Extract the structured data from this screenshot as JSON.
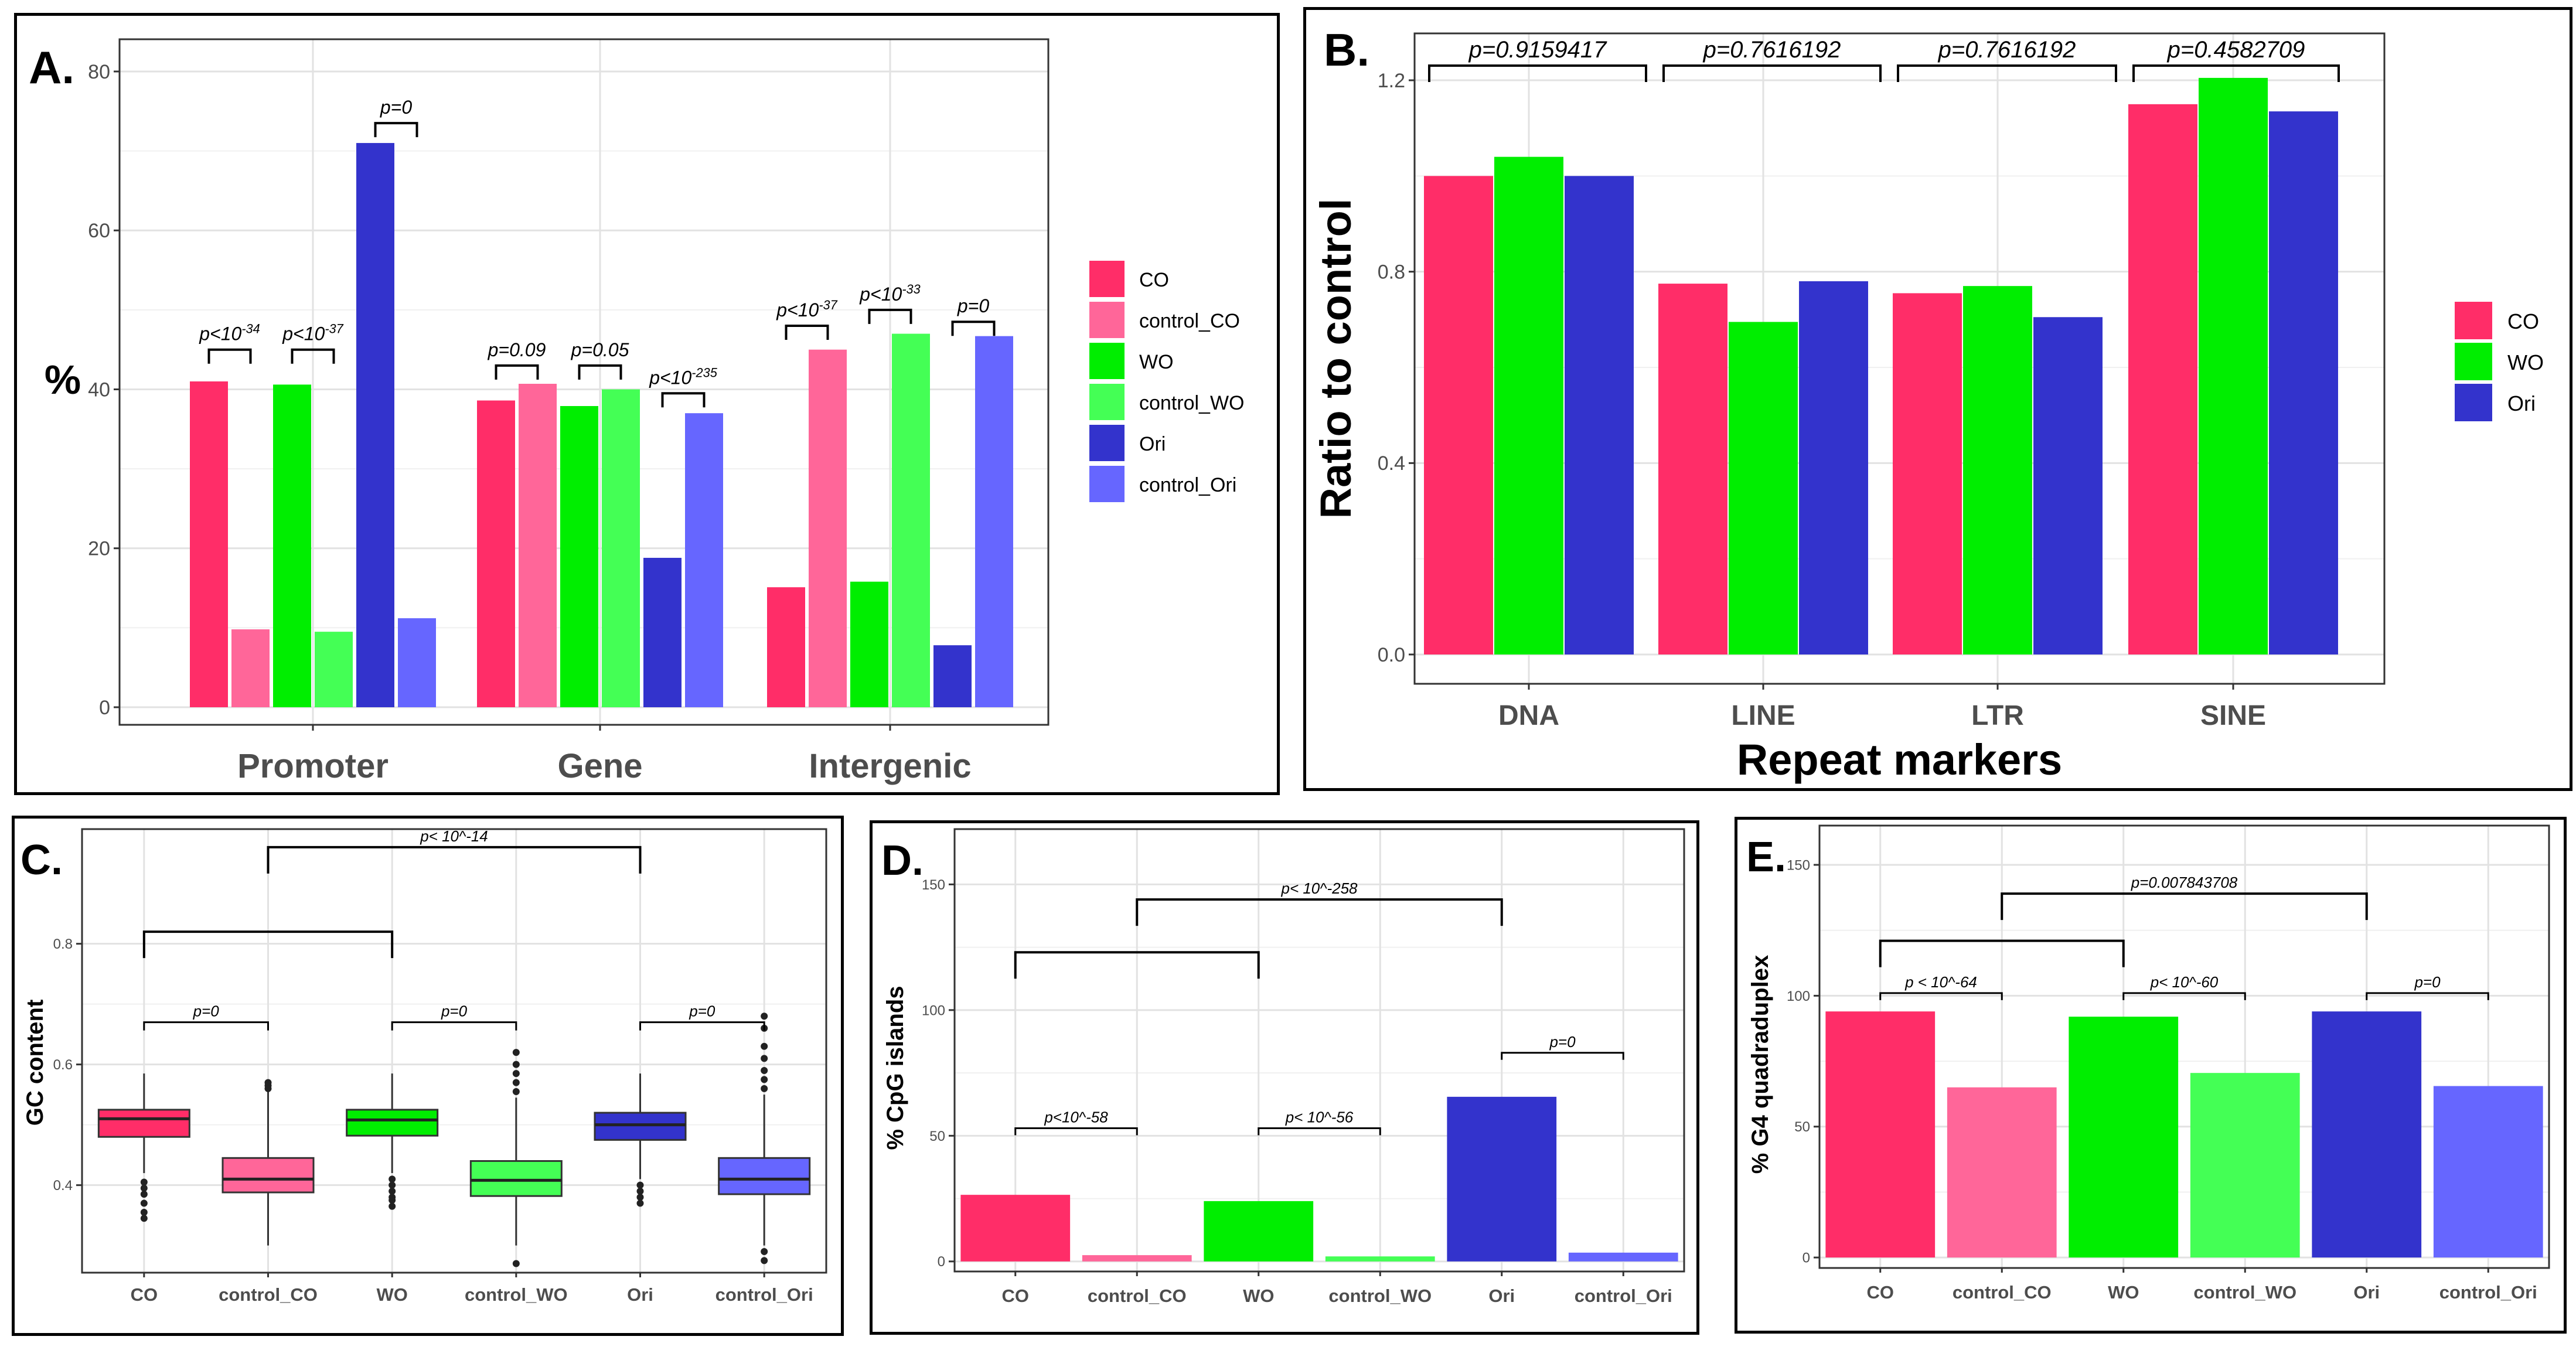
{
  "chart_data": [
    {
      "id": "A",
      "panel_label": "A.",
      "type": "bar",
      "ylabel": "%",
      "xlabel": "",
      "ylim": [
        0,
        82
      ],
      "yticks": [
        0,
        20,
        40,
        60,
        80
      ],
      "categories": [
        "Promoter",
        "Gene",
        "Intergenic"
      ],
      "series": [
        {
          "name": "CO",
          "values": [
            41,
            38.6,
            15.1
          ]
        },
        {
          "name": "control_CO",
          "values": [
            9.8,
            40.7,
            45
          ]
        },
        {
          "name": "WO",
          "values": [
            40.6,
            37.9,
            15.8
          ]
        },
        {
          "name": "control_WO",
          "values": [
            9.5,
            40,
            47
          ]
        },
        {
          "name": "Ori",
          "values": [
            71,
            18.8,
            7.8
          ]
        },
        {
          "name": "control_Ori",
          "values": [
            11.2,
            37,
            46.7
          ]
        }
      ],
      "colors": [
        "#ff2d68",
        "#ff6699",
        "#00ee00",
        "#44ff55",
        "#3333cc",
        "#6666ff"
      ],
      "legend_position": "right",
      "annotations": [
        {
          "text": "p<10",
          "sup": "-34",
          "group": 0,
          "pair": [
            0,
            1
          ],
          "y": 45
        },
        {
          "text": "p<10",
          "sup": "-37",
          "group": 0,
          "pair": [
            2,
            3
          ],
          "y": 45
        },
        {
          "text": "p=0",
          "sup": "",
          "group": 0,
          "pair": [
            4,
            5
          ],
          "y": 73.5
        },
        {
          "text": "p=0.09",
          "sup": "",
          "group": 1,
          "pair": [
            0,
            1
          ],
          "y": 43
        },
        {
          "text": "p=0.05",
          "sup": "",
          "group": 1,
          "pair": [
            2,
            3
          ],
          "y": 43
        },
        {
          "text": "p<10",
          "sup": "-235",
          "group": 1,
          "pair": [
            4,
            5
          ],
          "y": 39.5
        },
        {
          "text": "p<10",
          "sup": "-37",
          "group": 2,
          "pair": [
            0,
            1
          ],
          "y": 48
        },
        {
          "text": "p<10",
          "sup": "-33",
          "group": 2,
          "pair": [
            2,
            3
          ],
          "y": 50
        },
        {
          "text": "p=0",
          "sup": "",
          "group": 2,
          "pair": [
            4,
            5
          ],
          "y": 48.5
        }
      ]
    },
    {
      "id": "B",
      "panel_label": "B.",
      "type": "bar",
      "ylabel": "Ratio to control",
      "xlabel": "Repeat markers",
      "ylim": [
        -0.05,
        1.28
      ],
      "yticks": [
        0.0,
        0.4,
        0.8,
        1.2
      ],
      "ytick_labels": [
        "0.0",
        "0.4",
        "0.8",
        "1.2"
      ],
      "categories": [
        "DNA",
        "LINE",
        "LTR",
        "SINE"
      ],
      "series": [
        {
          "name": "CO",
          "values": [
            1.0,
            0.775,
            0.755,
            1.15
          ]
        },
        {
          "name": "WO",
          "values": [
            1.04,
            0.695,
            0.77,
            1.205
          ]
        },
        {
          "name": "Ori",
          "values": [
            1.0,
            0.78,
            0.705,
            1.135
          ]
        }
      ],
      "colors": [
        "#ff2d68",
        "#00ee00",
        "#3333cc"
      ],
      "legend_position": "right",
      "annotations": [
        {
          "text": "p=0.9159417",
          "from": 0,
          "to": 1
        },
        {
          "text": "p=0.7616192",
          "from": 1,
          "to": 2
        },
        {
          "text": "p=0.7616192",
          "from": 2,
          "to": 3
        },
        {
          "text": "p=0.4582709",
          "from": 3,
          "to": 3.6
        }
      ]
    },
    {
      "id": "C",
      "panel_label": "C.",
      "type": "boxplot",
      "ylabel": "GC content",
      "ylim": [
        0.255,
        0.99
      ],
      "yticks": [
        0.4,
        0.6,
        0.8
      ],
      "ytick_labels": [
        "0.4",
        "0.6",
        "0.8"
      ],
      "categories": [
        "CO",
        "control_CO",
        "WO",
        "control_WO",
        "Ori",
        "control_Ori"
      ],
      "boxes": [
        {
          "q1": 0.48,
          "median": 0.51,
          "q3": 0.525,
          "wlo": 0.42,
          "whi": 0.585,
          "outliers": [
            0.405,
            0.395,
            0.385,
            0.37,
            0.355,
            0.345
          ]
        },
        {
          "q1": 0.388,
          "median": 0.41,
          "q3": 0.445,
          "wlo": 0.3,
          "whi": 0.555,
          "outliers": [
            0.56,
            0.565,
            0.57
          ]
        },
        {
          "q1": 0.482,
          "median": 0.508,
          "q3": 0.525,
          "wlo": 0.42,
          "whi": 0.585,
          "outliers": [
            0.41,
            0.4,
            0.39,
            0.38,
            0.375,
            0.365
          ]
        },
        {
          "q1": 0.382,
          "median": 0.408,
          "q3": 0.44,
          "wlo": 0.3,
          "whi": 0.545,
          "outliers": [
            0.555,
            0.57,
            0.585,
            0.6,
            0.62,
            0.27
          ]
        },
        {
          "q1": 0.475,
          "median": 0.5,
          "q3": 0.52,
          "wlo": 0.41,
          "whi": 0.585,
          "outliers": [
            0.4,
            0.39,
            0.38,
            0.37
          ]
        },
        {
          "q1": 0.385,
          "median": 0.41,
          "q3": 0.445,
          "wlo": 0.3,
          "whi": 0.55,
          "outliers": [
            0.56,
            0.575,
            0.59,
            0.61,
            0.63,
            0.66,
            0.68,
            0.29,
            0.275
          ]
        }
      ],
      "colors": [
        "#ff2d68",
        "#ff6699",
        "#00ee00",
        "#44ff55",
        "#3333cc",
        "#6666ff"
      ],
      "annotations": [
        {
          "text": "p=0",
          "pair": [
            0,
            1
          ],
          "y": 0.67
        },
        {
          "text": "p=0",
          "pair": [
            2,
            3
          ],
          "y": 0.67
        },
        {
          "text": "p=0",
          "pair": [
            4,
            5
          ],
          "y": 0.67
        },
        {
          "text": "",
          "pair": [
            0,
            2
          ],
          "y": 0.82
        },
        {
          "text": "p< 10^-14",
          "pair": [
            1,
            4
          ],
          "y": 0.96
        }
      ]
    },
    {
      "id": "D",
      "panel_label": "D.",
      "type": "bar",
      "ylabel": "% CpG islands",
      "ylim": [
        -4,
        172
      ],
      "yticks": [
        0,
        50,
        100,
        150
      ],
      "categories": [
        "CO",
        "control_CO",
        "WO",
        "control_WO",
        "Ori",
        "control_Ori"
      ],
      "values": [
        26.5,
        2.5,
        24,
        2,
        65.5,
        3.5
      ],
      "colors": [
        "#ff2d68",
        "#ff6699",
        "#00ee00",
        "#44ff55",
        "#3333cc",
        "#6666ff"
      ],
      "annotations": [
        {
          "text": "p<10^-58",
          "pair": [
            0,
            1
          ],
          "y": 53
        },
        {
          "text": "p< 10^-56",
          "pair": [
            2,
            3
          ],
          "y": 53
        },
        {
          "text": "p=0",
          "pair": [
            4,
            5
          ],
          "y": 83
        },
        {
          "text": "",
          "pair": [
            0,
            2
          ],
          "y": 123
        },
        {
          "text": "p< 10^-258",
          "pair": [
            1,
            4
          ],
          "y": 144
        }
      ]
    },
    {
      "id": "E",
      "panel_label": "E.",
      "type": "bar",
      "ylabel": "% G4 quadraduplex",
      "ylim": [
        -4,
        165
      ],
      "yticks": [
        0,
        50,
        100,
        150
      ],
      "categories": [
        "CO",
        "control_CO",
        "WO",
        "control_WO",
        "Ori",
        "control_Ori"
      ],
      "values": [
        94,
        65,
        92,
        70.5,
        94,
        65.5
      ],
      "colors": [
        "#ff2d68",
        "#ff6699",
        "#00ee00",
        "#44ff55",
        "#3333cc",
        "#6666ff"
      ],
      "annotations": [
        {
          "text": "p < 10^-64",
          "pair": [
            0,
            1
          ],
          "y": 101
        },
        {
          "text": "p< 10^-60",
          "pair": [
            2,
            3
          ],
          "y": 101
        },
        {
          "text": "p=0",
          "pair": [
            4,
            5
          ],
          "y": 101
        },
        {
          "text": "",
          "pair": [
            0,
            2
          ],
          "y": 121
        },
        {
          "text": "p=0.007843708",
          "pair": [
            1,
            4
          ],
          "y": 139
        }
      ]
    }
  ]
}
